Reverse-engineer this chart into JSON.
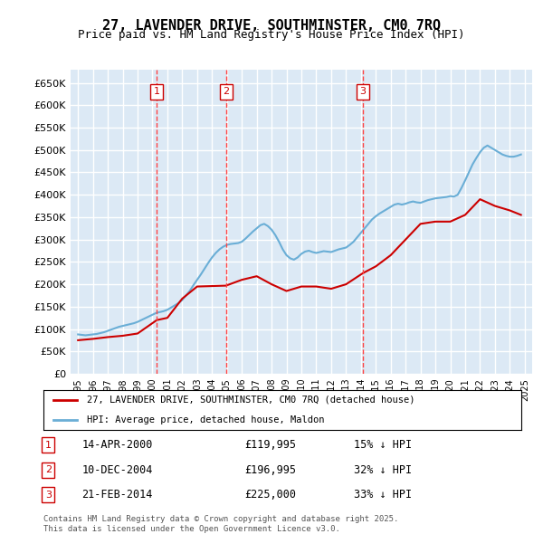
{
  "title": "27, LAVENDER DRIVE, SOUTHMINSTER, CM0 7RQ",
  "subtitle": "Price paid vs. HM Land Registry's House Price Index (HPI)",
  "legend_line1": "27, LAVENDER DRIVE, SOUTHMINSTER, CM0 7RQ (detached house)",
  "legend_line2": "HPI: Average price, detached house, Maldon",
  "footer": "Contains HM Land Registry data © Crown copyright and database right 2025.\nThis data is licensed under the Open Government Licence v3.0.",
  "ylim": [
    0,
    680000
  ],
  "yticks": [
    0,
    50000,
    100000,
    150000,
    200000,
    250000,
    300000,
    350000,
    400000,
    450000,
    500000,
    550000,
    600000,
    650000
  ],
  "ylabel_format": "£{0}K",
  "background_color": "#dce9f5",
  "plot_bg": "#dce9f5",
  "grid_color": "#ffffff",
  "sale_events": [
    {
      "num": 1,
      "date": "14-APR-2000",
      "price": 119995,
      "pct": "15%",
      "dir": "↓",
      "year": 2000.29
    },
    {
      "num": 2,
      "date": "10-DEC-2004",
      "price": 196995,
      "pct": "32%",
      "dir": "↓",
      "year": 2004.94
    },
    {
      "num": 3,
      "date": "21-FEB-2014",
      "price": 225000,
      "pct": "33%",
      "dir": "↓",
      "year": 2014.14
    }
  ],
  "hpi_line_color": "#6aaed6",
  "price_line_color": "#cc0000",
  "vline_color": "#ff4444",
  "marker_box_color": "#cc0000",
  "hpi_data": {
    "years": [
      1995.0,
      1995.25,
      1995.5,
      1995.75,
      1996.0,
      1996.25,
      1996.5,
      1996.75,
      1997.0,
      1997.25,
      1997.5,
      1997.75,
      1998.0,
      1998.25,
      1998.5,
      1998.75,
      1999.0,
      1999.25,
      1999.5,
      1999.75,
      2000.0,
      2000.25,
      2000.5,
      2000.75,
      2001.0,
      2001.25,
      2001.5,
      2001.75,
      2002.0,
      2002.25,
      2002.5,
      2002.75,
      2003.0,
      2003.25,
      2003.5,
      2003.75,
      2004.0,
      2004.25,
      2004.5,
      2004.75,
      2005.0,
      2005.25,
      2005.5,
      2005.75,
      2006.0,
      2006.25,
      2006.5,
      2006.75,
      2007.0,
      2007.25,
      2007.5,
      2007.75,
      2008.0,
      2008.25,
      2008.5,
      2008.75,
      2009.0,
      2009.25,
      2009.5,
      2009.75,
      2010.0,
      2010.25,
      2010.5,
      2010.75,
      2011.0,
      2011.25,
      2011.5,
      2011.75,
      2012.0,
      2012.25,
      2012.5,
      2012.75,
      2013.0,
      2013.25,
      2013.5,
      2013.75,
      2014.0,
      2014.25,
      2014.5,
      2014.75,
      2015.0,
      2015.25,
      2015.5,
      2015.75,
      2016.0,
      2016.25,
      2016.5,
      2016.75,
      2017.0,
      2017.25,
      2017.5,
      2017.75,
      2018.0,
      2018.25,
      2018.5,
      2018.75,
      2019.0,
      2019.25,
      2019.5,
      2019.75,
      2020.0,
      2020.25,
      2020.5,
      2020.75,
      2021.0,
      2021.25,
      2021.5,
      2021.75,
      2022.0,
      2022.25,
      2022.5,
      2022.75,
      2023.0,
      2023.25,
      2023.5,
      2023.75,
      2024.0,
      2024.25,
      2024.5,
      2024.75
    ],
    "values": [
      88000,
      87000,
      86000,
      87000,
      88000,
      89000,
      91000,
      93000,
      96000,
      99000,
      102000,
      105000,
      107000,
      109000,
      111000,
      113000,
      116000,
      120000,
      124000,
      128000,
      132000,
      136000,
      138000,
      140000,
      143000,
      148000,
      153000,
      158000,
      165000,
      175000,
      185000,
      198000,
      210000,
      222000,
      235000,
      248000,
      260000,
      270000,
      278000,
      284000,
      288000,
      290000,
      291000,
      292000,
      295000,
      302000,
      310000,
      318000,
      325000,
      332000,
      335000,
      330000,
      322000,
      310000,
      295000,
      278000,
      265000,
      258000,
      255000,
      260000,
      268000,
      273000,
      275000,
      272000,
      270000,
      272000,
      274000,
      273000,
      272000,
      275000,
      278000,
      280000,
      282000,
      288000,
      295000,
      305000,
      315000,
      325000,
      335000,
      345000,
      352000,
      358000,
      363000,
      368000,
      373000,
      378000,
      380000,
      378000,
      380000,
      383000,
      385000,
      383000,
      382000,
      385000,
      388000,
      390000,
      392000,
      393000,
      394000,
      395000,
      397000,
      396000,
      400000,
      415000,
      432000,
      450000,
      468000,
      482000,
      495000,
      505000,
      510000,
      505000,
      500000,
      495000,
      490000,
      487000,
      485000,
      485000,
      487000,
      490000
    ]
  },
  "price_data": {
    "years": [
      1995.0,
      1996.0,
      1997.0,
      1998.0,
      1999.0,
      2000.29,
      2001.0,
      2002.0,
      2003.0,
      2004.94,
      2006.0,
      2007.0,
      2008.0,
      2009.0,
      2010.0,
      2011.0,
      2012.0,
      2013.0,
      2014.14,
      2015.0,
      2016.0,
      2017.0,
      2018.0,
      2019.0,
      2020.0,
      2021.0,
      2022.0,
      2023.0,
      2024.0,
      2024.75
    ],
    "values": [
      75000,
      78000,
      82000,
      85000,
      90000,
      119995,
      125000,
      168000,
      195000,
      196995,
      210000,
      218000,
      200000,
      185000,
      195000,
      195000,
      190000,
      200000,
      225000,
      240000,
      265000,
      300000,
      335000,
      340000,
      340000,
      355000,
      390000,
      375000,
      365000,
      355000
    ]
  }
}
